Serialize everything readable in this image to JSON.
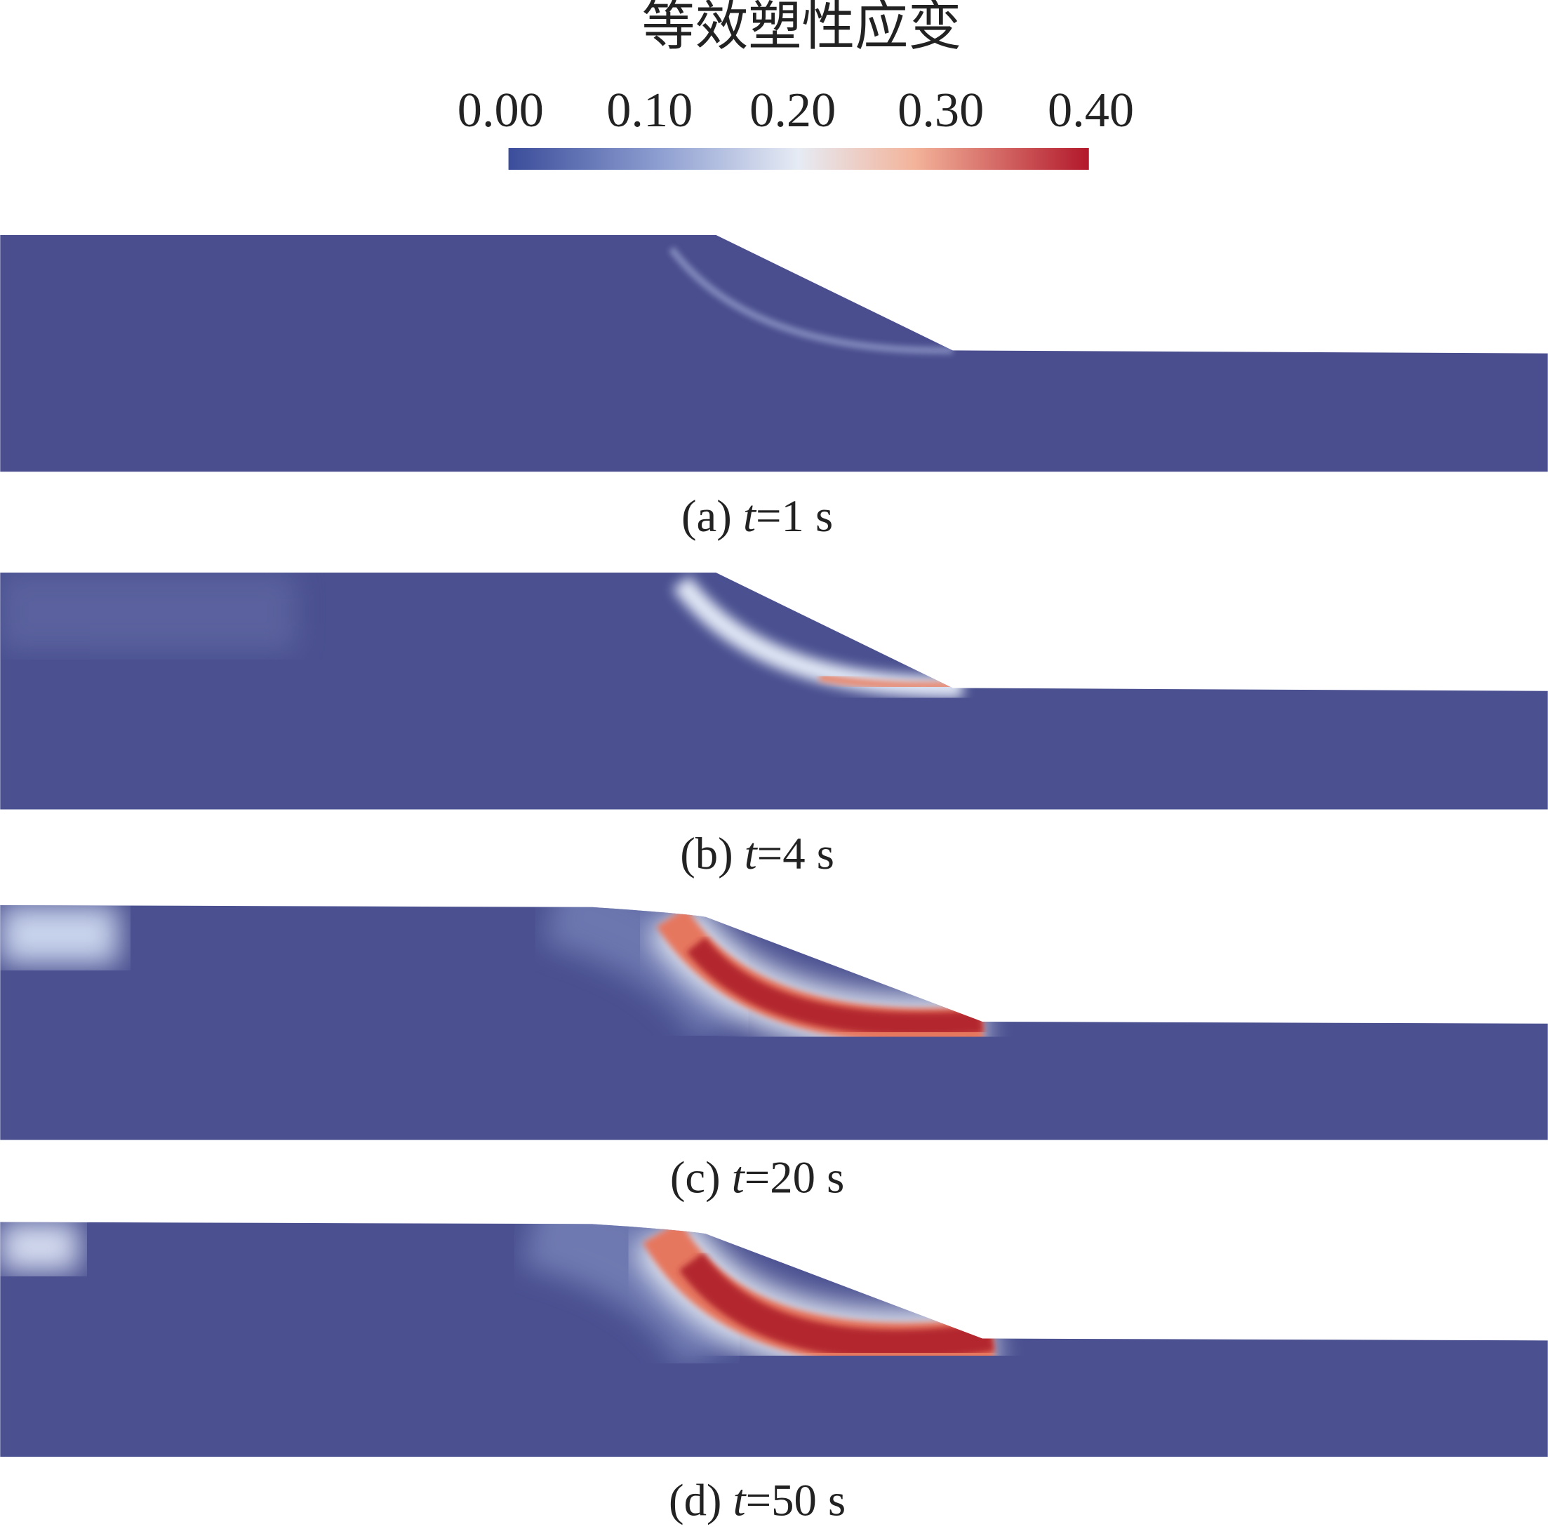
{
  "colorbar": {
    "title": "等效塑性应变",
    "ticks": [
      "0.00",
      "0.10",
      "0.20",
      "0.30",
      "0.40"
    ]
  },
  "panels": [
    {
      "prefix": "(a)",
      "variable": "t",
      "rest": "=1 s"
    },
    {
      "prefix": "(b)",
      "variable": "t",
      "rest": "=4 s"
    },
    {
      "prefix": "(c)",
      "variable": "t",
      "rest": "=20 s"
    },
    {
      "prefix": "(d)",
      "variable": "t",
      "rest": "=50 s"
    }
  ]
}
